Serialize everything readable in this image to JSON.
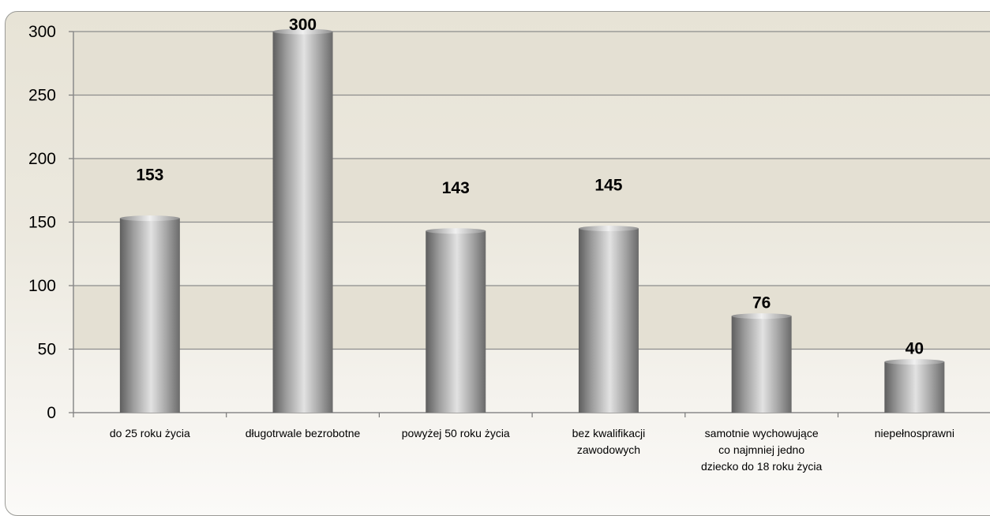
{
  "chart_data": {
    "type": "bar",
    "categories": [
      [
        "do 25 roku życia"
      ],
      [
        "długotrwale bezrobotne"
      ],
      [
        "powyżej 50 roku życia"
      ],
      [
        "bez kwalifikacji",
        "zawodowych"
      ],
      [
        "samotnie wychowujące",
        "co najmniej jedno",
        "dziecko do 18 roku życia"
      ],
      [
        "niepełnosprawni"
      ]
    ],
    "values": [
      153,
      300,
      143,
      145,
      76,
      40
    ],
    "data_labels": [
      "153",
      "300",
      "143",
      "145",
      "76",
      "40"
    ],
    "y_ticks": [
      "0",
      "50",
      "100",
      "150",
      "200",
      "250",
      "300"
    ],
    "ylim": [
      0,
      300
    ],
    "grid": true,
    "legend": "none",
    "colors": {
      "bar_dark": "#5e5e5e",
      "bar_light": "#e2e2e2",
      "gridline": "#8c8c8c",
      "band": "#e4e0d3"
    }
  }
}
